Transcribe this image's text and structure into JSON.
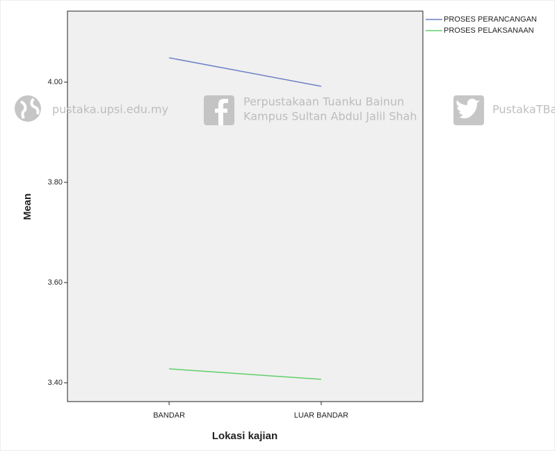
{
  "chart_data": {
    "type": "line",
    "x_label": "Lokasi kajian",
    "y_label": "Mean",
    "categories": [
      "BANDAR",
      "LUAR BANDAR"
    ],
    "series": [
      {
        "name": "PROSES PERANCANGAN",
        "color": "#6d7fc7",
        "values": [
          4.0486,
          3.9917
        ]
      },
      {
        "name": "PROSES PELAKSANAAN",
        "color": "#5fcf6a",
        "values": [
          3.4278,
          3.4069
        ]
      }
    ],
    "ylim": [
      3.3625,
      4.1417
    ],
    "yticks": [
      {
        "value": 3.4,
        "label": "3.40"
      },
      {
        "value": 3.6,
        "label": "3.60"
      },
      {
        "value": 3.8,
        "label": "3.80"
      },
      {
        "value": 4.0,
        "label": "4.00"
      }
    ],
    "legend": "top-right"
  },
  "watermark": [
    "pustaka.upsi.edu.my",
    "Perpustakaan Tuanku Bainun",
    "Kampus Sultan Abdul Jalil Shah",
    "PustakaTBainun"
  ]
}
